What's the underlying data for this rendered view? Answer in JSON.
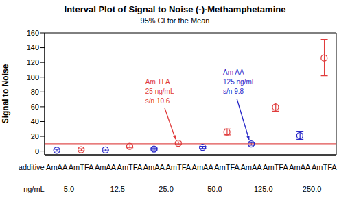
{
  "chart_data": {
    "type": "interval",
    "title": "Interval Plot of Signal to Noise (-)-Methamphetamine",
    "subtitle": "95% CI for the Mean",
    "y_label": "Signal to Noise",
    "category_label": "additive",
    "group_label": "ng/mL",
    "categories": [
      "AmAA",
      "AmTFA",
      "AmAA",
      "AmTFA",
      "AmAA",
      "AmTFA",
      "AmAA",
      "AmTFA",
      "AmAA",
      "AmTFA",
      "AmAA",
      "AmTFA"
    ],
    "groups": [
      "5.0",
      "12.5",
      "25.0",
      "50.0",
      "125.0",
      "250.0"
    ],
    "values": [
      1.2,
      1.8,
      1.6,
      6.5,
      2.8,
      10.6,
      5,
      26,
      9.8,
      59.5,
      21,
      126
    ],
    "ci_low": [
      0,
      0.5,
      0.5,
      4.5,
      1.5,
      9,
      3.5,
      22,
      8,
      54,
      16,
      102
    ],
    "ci_high": [
      2.4,
      3.2,
      2.8,
      8.5,
      4.2,
      12.2,
      6.5,
      30,
      11.5,
      65,
      27,
      151
    ],
    "colors": [
      "#2828c8",
      "#e03c3c",
      "#2828c8",
      "#e03c3c",
      "#2828c8",
      "#e03c3c",
      "#2828c8",
      "#e03c3c",
      "#2828c8",
      "#e03c3c",
      "#2828c8",
      "#e03c3c"
    ],
    "marker": "open_circle",
    "reference": {
      "value": 10,
      "color": "#e05050"
    },
    "annotations": [
      {
        "text": [
          "Am TFA",
          "25 ng/mL",
          "s/n 10.6"
        ],
        "index": 5,
        "value": 10.6,
        "color": "#e03c3c"
      },
      {
        "text": [
          "Am AA",
          "125 ng/mL",
          "s/n 9.8"
        ],
        "index": 8,
        "value": 9.8,
        "color": "#2828c8"
      }
    ],
    "ylim": [
      -5,
      160
    ],
    "yticks": [
      0,
      20,
      40,
      60,
      80,
      100,
      120,
      140,
      160
    ]
  }
}
